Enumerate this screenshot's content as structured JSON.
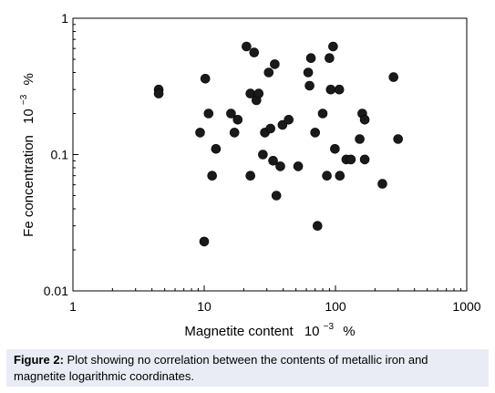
{
  "chart_data": {
    "type": "scatter",
    "xscale": "log",
    "yscale": "log",
    "xlim": [
      1,
      1000
    ],
    "ylim": [
      0.01,
      1
    ],
    "x_ticks": [
      "1",
      "10",
      "100",
      "1000"
    ],
    "y_ticks": [
      "0.01",
      "0.1",
      "1"
    ],
    "xlabel_main": "Magnetite content",
    "xlabel_unit_base": "10",
    "xlabel_unit_exp": "−3",
    "xlabel_unit_pct": "%",
    "ylabel_main": "Fe concentration",
    "ylabel_unit_base": "10",
    "ylabel_unit_exp": "−3",
    "ylabel_unit_pct": "%",
    "points": [
      {
        "x": 4.5,
        "y": 0.3
      },
      {
        "x": 4.5,
        "y": 0.28
      },
      {
        "x": 9.3,
        "y": 0.145
      },
      {
        "x": 10.2,
        "y": 0.36
      },
      {
        "x": 10.8,
        "y": 0.2
      },
      {
        "x": 11.5,
        "y": 0.07
      },
      {
        "x": 12.3,
        "y": 0.11
      },
      {
        "x": 10.0,
        "y": 0.023
      },
      {
        "x": 16.0,
        "y": 0.2
      },
      {
        "x": 17.0,
        "y": 0.145
      },
      {
        "x": 18.0,
        "y": 0.18
      },
      {
        "x": 21.0,
        "y": 0.62
      },
      {
        "x": 22.5,
        "y": 0.28
      },
      {
        "x": 22.5,
        "y": 0.07
      },
      {
        "x": 24.0,
        "y": 0.56
      },
      {
        "x": 25.0,
        "y": 0.25
      },
      {
        "x": 26.0,
        "y": 0.28
      },
      {
        "x": 28.0,
        "y": 0.1
      },
      {
        "x": 29.0,
        "y": 0.145
      },
      {
        "x": 31.0,
        "y": 0.4
      },
      {
        "x": 32.0,
        "y": 0.155
      },
      {
        "x": 33.5,
        "y": 0.09
      },
      {
        "x": 34.5,
        "y": 0.46
      },
      {
        "x": 35.5,
        "y": 0.05
      },
      {
        "x": 38.0,
        "y": 0.082
      },
      {
        "x": 39.5,
        "y": 0.165
      },
      {
        "x": 44.0,
        "y": 0.18
      },
      {
        "x": 52.0,
        "y": 0.082
      },
      {
        "x": 62.0,
        "y": 0.4
      },
      {
        "x": 63.5,
        "y": 0.32
      },
      {
        "x": 65.0,
        "y": 0.51
      },
      {
        "x": 70.0,
        "y": 0.145
      },
      {
        "x": 73.0,
        "y": 0.03
      },
      {
        "x": 80.0,
        "y": 0.2
      },
      {
        "x": 86.0,
        "y": 0.07
      },
      {
        "x": 90.0,
        "y": 0.51
      },
      {
        "x": 92.0,
        "y": 0.3
      },
      {
        "x": 96.0,
        "y": 0.62
      },
      {
        "x": 99.0,
        "y": 0.11
      },
      {
        "x": 107.0,
        "y": 0.3
      },
      {
        "x": 108.0,
        "y": 0.07
      },
      {
        "x": 121.0,
        "y": 0.092
      },
      {
        "x": 131.0,
        "y": 0.092
      },
      {
        "x": 153.0,
        "y": 0.13
      },
      {
        "x": 160.0,
        "y": 0.2
      },
      {
        "x": 167.0,
        "y": 0.18
      },
      {
        "x": 167.0,
        "y": 0.092
      },
      {
        "x": 228.0,
        "y": 0.061
      },
      {
        "x": 277.0,
        "y": 0.37
      },
      {
        "x": 300.0,
        "y": 0.13
      }
    ]
  },
  "caption": {
    "label": "Figure 2:",
    "text": " Plot showing no correlation between the contents of metallic iron and magnetite logarithmic coordinates."
  },
  "colors": {
    "marker": "#1a1a1a",
    "caption_bg": "#e9ecf5"
  }
}
